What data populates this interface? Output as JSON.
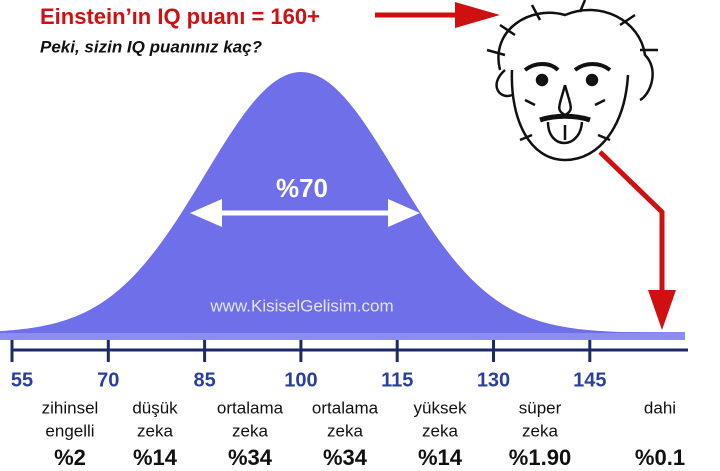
{
  "header": {
    "title": "Einstein’ın IQ puanı = 160+",
    "subtitle": "Peki, sizin IQ puanınız kaç?"
  },
  "curve": {
    "center_label": "%70",
    "watermark": "www.KisiselGelisim.com"
  },
  "axis": {
    "ticks": [
      55,
      70,
      85,
      100,
      115,
      130,
      145
    ]
  },
  "groups": [
    {
      "lines": [
        "zihinsel",
        "engelli"
      ],
      "share": "%2"
    },
    {
      "lines": [
        "düşük",
        "zeka"
      ],
      "share": "%14"
    },
    {
      "lines": [
        "ortalama",
        "zeka"
      ],
      "share": "%34"
    },
    {
      "lines": [
        "ortalama",
        "zeka"
      ],
      "share": "%34"
    },
    {
      "lines": [
        "yüksek",
        "zeka"
      ],
      "share": "%14"
    },
    {
      "lines": [
        "süper",
        "zeka"
      ],
      "share": "%1.90"
    },
    {
      "lines": [
        "dahi"
      ],
      "share": "%0.1"
    }
  ]
}
